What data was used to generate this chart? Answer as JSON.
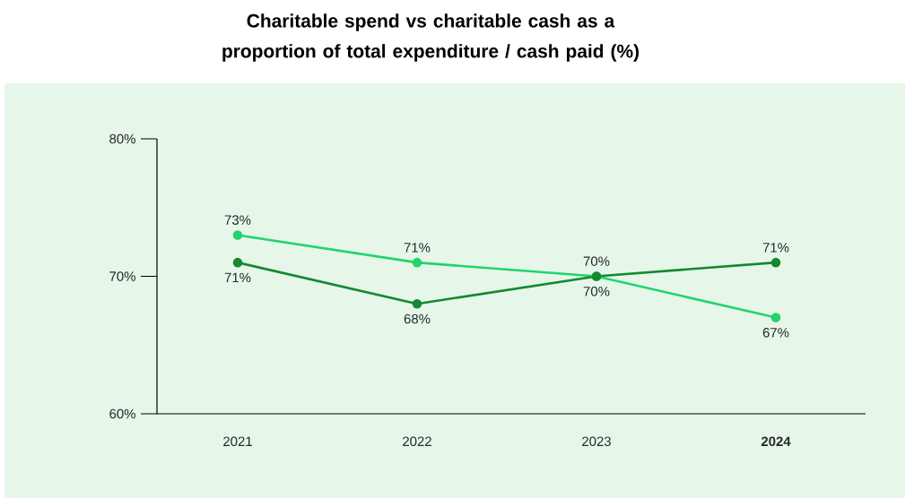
{
  "chart_data": {
    "type": "line",
    "title": "Charitable spend vs charitable cash as a proportion of total expenditure / cash paid (%)",
    "categories": [
      "2021",
      "2022",
      "2023",
      "**2024**"
    ],
    "series": [
      {
        "color": "#22d46b",
        "values": [
          73,
          71,
          70,
          67
        ],
        "value_labels": [
          "73%",
          "71%",
          "70%",
          "67%"
        ]
      },
      {
        "color": "#14892f",
        "values": [
          71,
          68,
          70,
          71
        ],
        "value_labels": [
          "71%",
          "68%",
          "70%",
          "71%"
        ]
      }
    ],
    "ylim": [
      60,
      80
    ],
    "yticks": [
      {
        "value": 60,
        "label": "60%"
      },
      {
        "value": 70,
        "label": "70%"
      },
      {
        "value": 80,
        "label": "80%"
      }
    ],
    "grid": false,
    "marker": "circle",
    "line_style": "solid"
  }
}
